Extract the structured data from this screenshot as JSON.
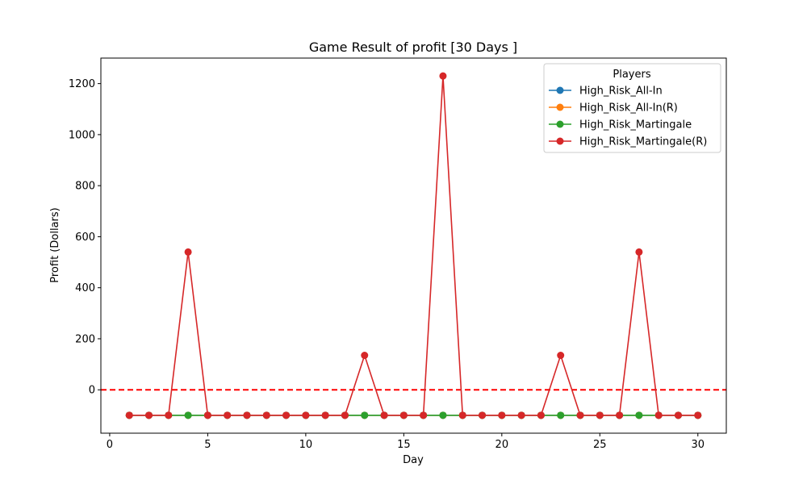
{
  "chart_data": {
    "type": "line",
    "title": "Game Result of profit [30 Days ]",
    "xlabel": "Day",
    "ylabel": "Profit (Dollars)",
    "xlim": [
      -0.45,
      31.45
    ],
    "ylim": [
      -170,
      1300
    ],
    "xticks": [
      0,
      5,
      10,
      15,
      20,
      25,
      30
    ],
    "yticks": [
      0,
      200,
      400,
      600,
      800,
      1000,
      1200
    ],
    "reference_line": {
      "y": 0,
      "color": "#ff0000",
      "style": "dashed"
    },
    "legend": {
      "title": "Players",
      "position": "top-right"
    },
    "x": [
      1,
      2,
      3,
      4,
      5,
      6,
      7,
      8,
      9,
      10,
      11,
      12,
      13,
      14,
      15,
      16,
      17,
      18,
      19,
      20,
      21,
      22,
      23,
      24,
      25,
      26,
      27,
      28,
      29,
      30
    ],
    "series": [
      {
        "name": "High_Risk_All-In",
        "color": "#1f77b4",
        "values": [
          -100,
          -100,
          -100,
          -100,
          -100,
          -100,
          -100,
          -100,
          -100,
          -100,
          -100,
          -100,
          -100,
          -100,
          -100,
          -100,
          -100,
          -100,
          -100,
          -100,
          -100,
          -100,
          -100,
          -100,
          -100,
          -100,
          -100,
          -100,
          -100,
          -100
        ]
      },
      {
        "name": "High_Risk_All-In(R)",
        "color": "#ff7f0e",
        "values": [
          -100,
          -100,
          -100,
          -100,
          -100,
          -100,
          -100,
          -100,
          -100,
          -100,
          -100,
          -100,
          -100,
          -100,
          -100,
          -100,
          -100,
          -100,
          -100,
          -100,
          -100,
          -100,
          -100,
          -100,
          -100,
          -100,
          -100,
          -100,
          -100,
          -100
        ]
      },
      {
        "name": "High_Risk_Martingale",
        "color": "#2ca02c",
        "values": [
          -100,
          -100,
          -100,
          -100,
          -100,
          -100,
          -100,
          -100,
          -100,
          -100,
          -100,
          -100,
          -100,
          -100,
          -100,
          -100,
          -100,
          -100,
          -100,
          -100,
          -100,
          -100,
          -100,
          -100,
          -100,
          -100,
          -100,
          -100,
          -100,
          -100
        ]
      },
      {
        "name": "High_Risk_Martingale(R)",
        "color": "#d62728",
        "values": [
          -100,
          -100,
          -100,
          540,
          -100,
          -100,
          -100,
          -100,
          -100,
          -100,
          -100,
          -100,
          135,
          -100,
          -100,
          -100,
          1230,
          -100,
          -100,
          -100,
          -100,
          -100,
          135,
          -100,
          -100,
          -100,
          540,
          -100,
          -100,
          -100
        ]
      }
    ]
  }
}
